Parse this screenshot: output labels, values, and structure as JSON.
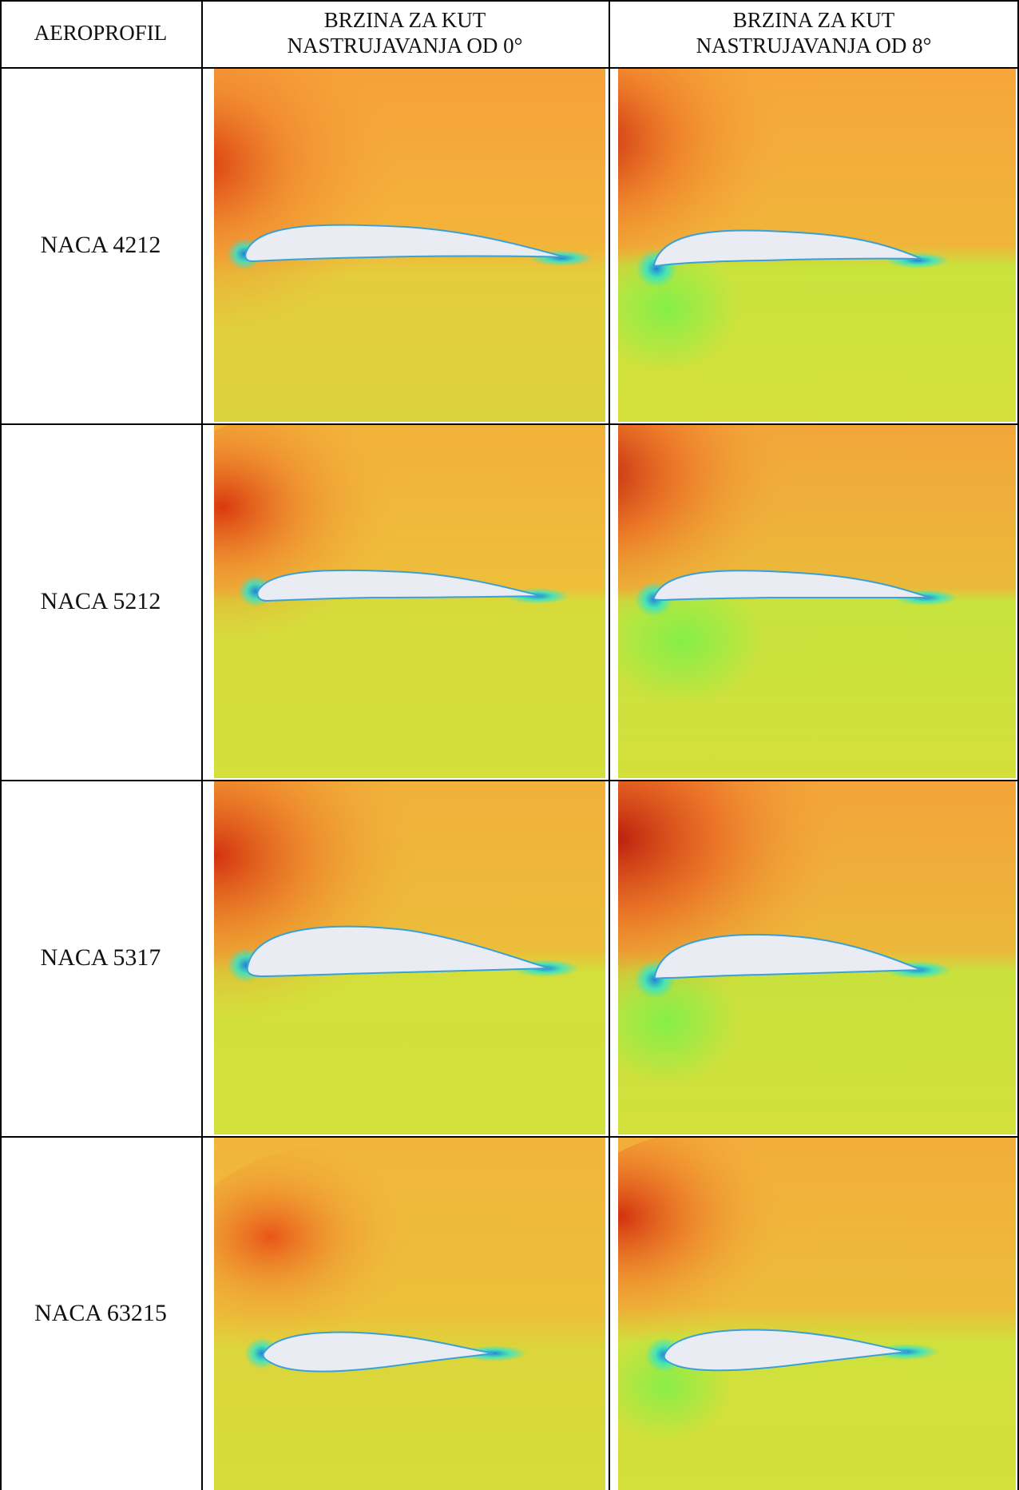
{
  "table": {
    "headers": [
      "AEROPROFIL",
      "BRZINA ZA KUT\nNASTRUJAVANJA OD 0°",
      "BRZINA ZA KUT\nNASTRUJAVANJA OD 8°"
    ],
    "rows": [
      {
        "label": "NACA 4212"
      },
      {
        "label": "NACA 5212"
      },
      {
        "label": "NACA 5317"
      },
      {
        "label": "NACA 63215"
      }
    ]
  },
  "colors": {
    "ambient_orange": "#f2a43a",
    "lower_yellow": "#d3e03b",
    "high_red": "#c51d0c",
    "stagnation_blue": "#1f7fd8",
    "stagnation_cyan": "#2de6cf",
    "airfoil_fill": "#e9ecf3",
    "grid_line": "#000000"
  }
}
